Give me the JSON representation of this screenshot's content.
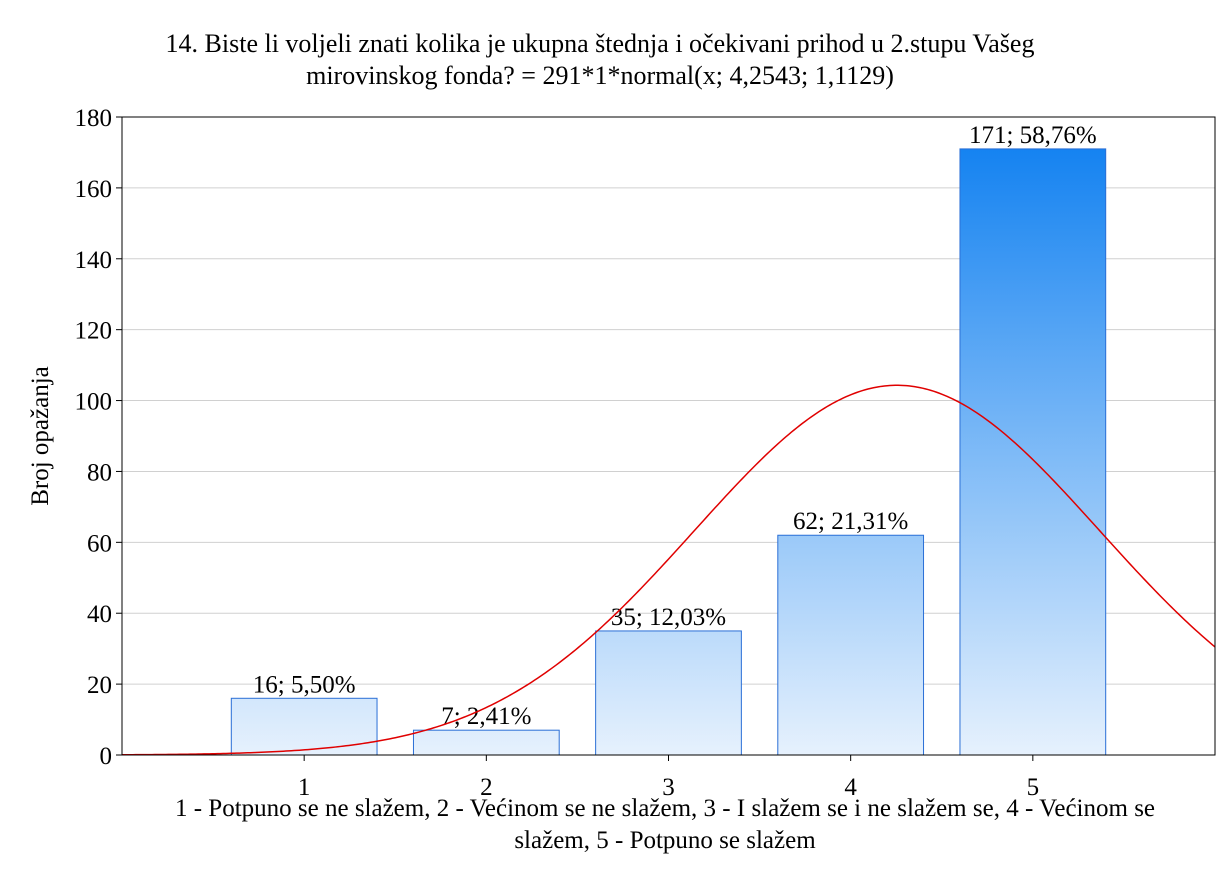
{
  "chart_data": {
    "type": "bar",
    "title": "14. Biste li voljeli znati kolika je ukupna štednja i očekivani prihod u 2.stupu Vašeg mirovinskog fonda? = 291*1*normal(x; 4,2543; 1,1129)",
    "x_label": "1 - Potpuno se ne slažem, 2 - Većinom se ne slažem, 3 - I slažem se i ne slažem se, 4 - Većinom se slažem, 5 - Potpuno se slažem",
    "y_label": "Broj opažanja",
    "x": [
      1,
      2,
      3,
      4,
      5
    ],
    "values": [
      16,
      7,
      35,
      62,
      171
    ],
    "value_labels": [
      "16; 5,50%",
      "7; 2,41%",
      "35; 12,03%",
      "62; 21,31%",
      "171; 58,76%"
    ],
    "color": [
      "#0a7df0",
      "#e6f1fd"
    ],
    "fit": {
      "n": 291,
      "mean": 4.2543,
      "sd": 1.1129,
      "color": "#e00000"
    },
    "xlim": [
      0,
      6
    ],
    "xticks": [
      1,
      2,
      3,
      4,
      5
    ],
    "ylim": [
      0,
      180
    ],
    "yticks": [
      0,
      20,
      40,
      60,
      80,
      100,
      120,
      140,
      160,
      180
    ],
    "grid": true
  }
}
